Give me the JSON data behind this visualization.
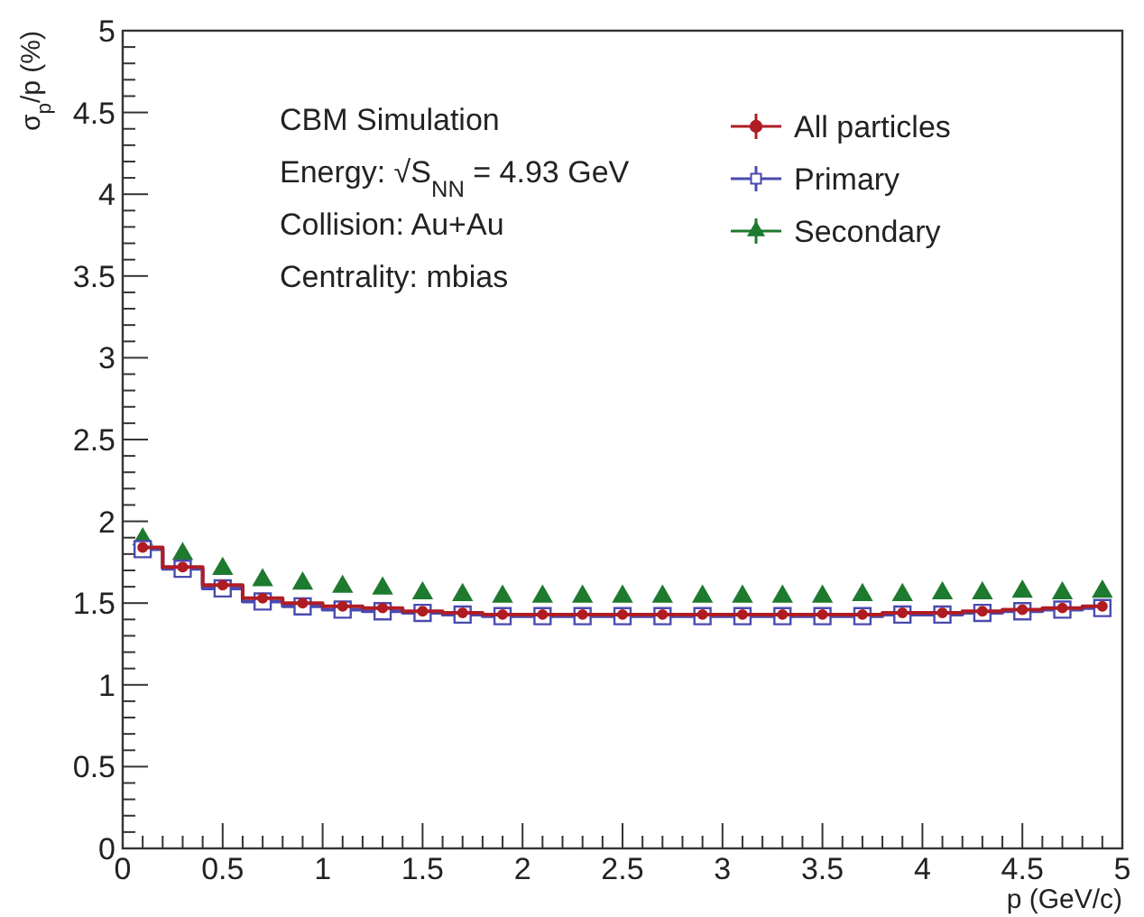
{
  "chart_data": {
    "type": "scatter",
    "xlabel": "p (GeV/c)",
    "ylabel": "σ$_{p}$/p (%)",
    "annotations": [
      "CBM Simulation",
      "Energy: √S$_{NN}$ = 4.93 GeV",
      "Collision: Au+Au",
      "Centrality: mbias"
    ],
    "x": [
      0.1,
      0.3,
      0.5,
      0.7,
      0.9,
      1.1,
      1.3,
      1.5,
      1.7,
      1.9,
      2.1,
      2.3,
      2.5,
      2.7,
      2.9,
      3.1,
      3.3,
      3.5,
      3.7,
      3.9,
      4.1,
      4.3,
      4.5,
      4.7,
      4.9
    ],
    "series": [
      {
        "name": "All particles",
        "type": "step",
        "color": "#b01c24",
        "marker": "circle",
        "values": [
          1.84,
          1.72,
          1.61,
          1.53,
          1.5,
          1.48,
          1.47,
          1.45,
          1.44,
          1.43,
          1.43,
          1.43,
          1.43,
          1.43,
          1.43,
          1.43,
          1.43,
          1.43,
          1.43,
          1.44,
          1.44,
          1.45,
          1.46,
          1.47,
          1.48
        ]
      },
      {
        "name": "Primary",
        "type": "step",
        "color": "#4a4ab0",
        "marker": "square",
        "values": [
          1.83,
          1.71,
          1.59,
          1.51,
          1.48,
          1.46,
          1.45,
          1.44,
          1.43,
          1.42,
          1.42,
          1.42,
          1.42,
          1.42,
          1.42,
          1.42,
          1.42,
          1.42,
          1.42,
          1.43,
          1.43,
          1.44,
          1.45,
          1.46,
          1.47
        ]
      },
      {
        "name": "Secondary",
        "color": "#1e7a2e",
        "marker": "triangle",
        "values": [
          1.89,
          1.8,
          1.71,
          1.64,
          1.62,
          1.6,
          1.59,
          1.56,
          1.55,
          1.54,
          1.54,
          1.54,
          1.54,
          1.54,
          1.54,
          1.54,
          1.54,
          1.54,
          1.55,
          1.55,
          1.56,
          1.56,
          1.57,
          1.56,
          1.57
        ]
      }
    ],
    "xlim": [
      0,
      5
    ],
    "ylim": [
      0,
      5
    ],
    "xticks": [
      0,
      {
        "value": 0.1,
        "label": null
      },
      {
        "value": 0.2,
        "label": null
      },
      {
        "value": 0.3,
        "label": null
      },
      {
        "value": 0.4,
        "label": null
      },
      0.5,
      {
        "value": 0.6,
        "label": null
      },
      {
        "value": 0.7,
        "label": null
      },
      {
        "value": 0.8,
        "label": null
      },
      {
        "value": 0.9,
        "label": null
      },
      1,
      {
        "value": 1.1,
        "label": null
      },
      {
        "value": 1.2,
        "label": null
      },
      {
        "value": 1.3,
        "label": null
      },
      {
        "value": 1.4,
        "label": null
      },
      1.5,
      {
        "value": 1.6,
        "label": null
      },
      {
        "value": 1.7,
        "label": null
      },
      {
        "value": 1.8,
        "label": null
      },
      {
        "value": 1.9,
        "label": null
      },
      2,
      {
        "value": 2.1,
        "label": null
      },
      {
        "value": 2.2,
        "label": null
      },
      {
        "value": 2.3,
        "label": null
      },
      {
        "value": 2.4,
        "label": null
      },
      2.5,
      {
        "value": 2.6,
        "label": null
      },
      {
        "value": 2.7,
        "label": null
      },
      {
        "value": 2.8,
        "label": null
      },
      {
        "value": 2.9,
        "label": null
      },
      3,
      {
        "value": 3.1,
        "label": null
      },
      {
        "value": 3.2,
        "label": null
      },
      {
        "value": 3.3,
        "label": null
      },
      {
        "value": 3.4,
        "label": null
      },
      3.5,
      {
        "value": 3.6,
        "label": null
      },
      {
        "value": 3.7,
        "label": null
      },
      {
        "value": 3.8,
        "label": null
      },
      {
        "value": 3.9,
        "label": null
      },
      4,
      {
        "value": 4.1,
        "label": null
      },
      {
        "value": 4.2,
        "label": null
      },
      {
        "value": 4.3,
        "label": null
      },
      {
        "value": 4.4,
        "label": null
      },
      4.5,
      {
        "value": 4.6,
        "label": null
      },
      {
        "value": 4.7,
        "label": null
      },
      {
        "value": 4.8,
        "label": null
      },
      {
        "value": 4.9,
        "label": null
      },
      5
    ],
    "yticks": [
      0,
      {
        "value": 0.1,
        "label": null
      },
      {
        "value": 0.2,
        "label": null
      },
      {
        "value": 0.3,
        "label": null
      },
      {
        "value": 0.4,
        "label": null
      },
      0.5,
      {
        "value": 0.6,
        "label": null
      },
      {
        "value": 0.7,
        "label": null
      },
      {
        "value": 0.8,
        "label": null
      },
      {
        "value": 0.9,
        "label": null
      },
      1,
      {
        "value": 1.1,
        "label": null
      },
      {
        "value": 1.2,
        "label": null
      },
      {
        "value": 1.3,
        "label": null
      },
      {
        "value": 1.4,
        "label": null
      },
      1.5,
      {
        "value": 1.6,
        "label": null
      },
      {
        "value": 1.7,
        "label": null
      },
      {
        "value": 1.8,
        "label": null
      },
      {
        "value": 1.9,
        "label": null
      },
      2,
      {
        "value": 2.1,
        "label": null
      },
      {
        "value": 2.2,
        "label": null
      },
      {
        "value": 2.3,
        "label": null
      },
      {
        "value": 2.4,
        "label": null
      },
      2.5,
      {
        "value": 2.6,
        "label": null
      },
      {
        "value": 2.7,
        "label": null
      },
      {
        "value": 2.8,
        "label": null
      },
      {
        "value": 2.9,
        "label": null
      },
      3,
      {
        "value": 3.1,
        "label": null
      },
      {
        "value": 3.2,
        "label": null
      },
      {
        "value": 3.3,
        "label": null
      },
      {
        "value": 3.4,
        "label": null
      },
      3.5,
      {
        "value": 3.6,
        "label": null
      },
      {
        "value": 3.7,
        "label": null
      },
      {
        "value": 3.8,
        "label": null
      },
      {
        "value": 3.9,
        "label": null
      },
      4,
      {
        "value": 4.1,
        "label": null
      },
      {
        "value": 4.2,
        "label": null
      },
      {
        "value": 4.3,
        "label": null
      },
      {
        "value": 4.4,
        "label": null
      },
      4.5,
      {
        "value": 4.6,
        "label": null
      },
      {
        "value": 4.7,
        "label": null
      },
      {
        "value": 4.8,
        "label": null
      },
      {
        "value": 4.9,
        "label": null
      },
      5
    ],
    "grid": false,
    "legend": "top right"
  }
}
